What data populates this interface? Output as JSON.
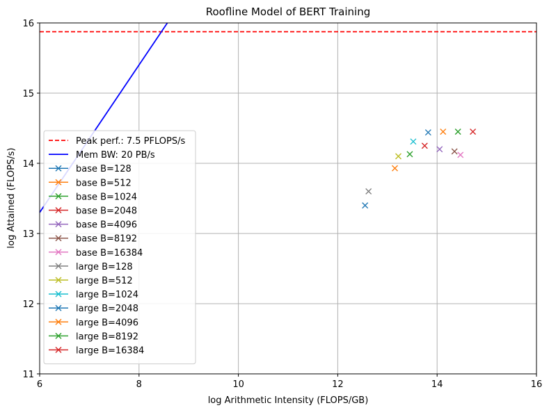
{
  "chart_data": {
    "type": "scatter",
    "title": "Roofline Model of BERT Training",
    "xlabel": "log Arithmetic Intensity (FLOPS/GB)",
    "ylabel": "log Attained (FLOPS/s)",
    "xlim": [
      6,
      16
    ],
    "ylim": [
      11,
      16
    ],
    "xticks": [
      "6",
      "8",
      "10",
      "12",
      "14",
      "16"
    ],
    "yticks": [
      "11",
      "12",
      "13",
      "14",
      "15",
      "16"
    ],
    "grid": true,
    "legend_position": "lower-left",
    "lines": [
      {
        "name": "Peak perf.: 7.5 PFLOPS/s",
        "color": "#ff0000",
        "style": "dashed",
        "y": 15.875
      },
      {
        "name": "Mem BW: 20 PB/s",
        "color": "#0000ff",
        "style": "solid",
        "x": [
          6,
          8.57
        ],
        "y": [
          13.3,
          16
        ]
      }
    ],
    "series": [
      {
        "name": "base B=128",
        "color": "#1f77b4",
        "x": 12.55,
        "y": 13.4
      },
      {
        "name": "base B=512",
        "color": "#ff7f0e",
        "x": 13.15,
        "y": 13.93
      },
      {
        "name": "base B=1024",
        "color": "#2ca02c",
        "x": 13.45,
        "y": 14.13
      },
      {
        "name": "base B=2048",
        "color": "#d62728",
        "x": 13.75,
        "y": 14.25
      },
      {
        "name": "base B=4096",
        "color": "#9467bd",
        "x": 14.05,
        "y": 14.2
      },
      {
        "name": "base B=8192",
        "color": "#8c564b",
        "x": 14.35,
        "y": 14.17
      },
      {
        "name": "base B=16384",
        "color": "#e377c2",
        "x": 14.47,
        "y": 14.12
      },
      {
        "name": "large B=128",
        "color": "#7f7f7f",
        "x": 12.62,
        "y": 13.6
      },
      {
        "name": "large B=512",
        "color": "#bcbd22",
        "x": 13.22,
        "y": 14.1
      },
      {
        "name": "large B=1024",
        "color": "#17becf",
        "x": 13.52,
        "y": 14.31
      },
      {
        "name": "large B=2048",
        "color": "#1f77b4",
        "x": 13.82,
        "y": 14.44
      },
      {
        "name": "large B=4096",
        "color": "#ff7f0e",
        "x": 14.12,
        "y": 14.45
      },
      {
        "name": "large B=8192",
        "color": "#2ca02c",
        "x": 14.42,
        "y": 14.45
      },
      {
        "name": "large B=16384",
        "color": "#d62728",
        "x": 14.72,
        "y": 14.45
      }
    ]
  }
}
